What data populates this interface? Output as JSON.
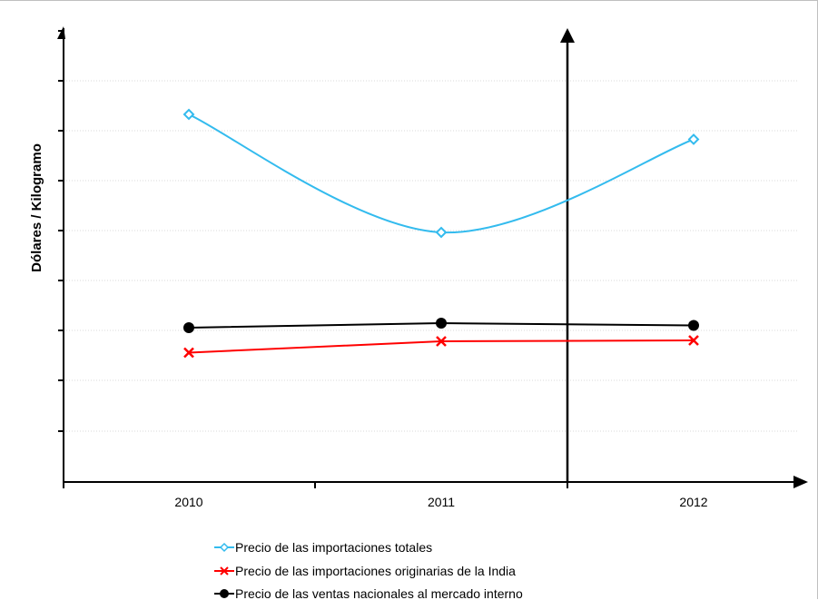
{
  "chart_data": {
    "type": "line",
    "title": "",
    "xlabel": "",
    "ylabel": "Dólares / Kilogramo",
    "categories": [
      "2010",
      "2011",
      "2012"
    ],
    "ylim": [
      0,
      100
    ],
    "y_tick_labels_shown": false,
    "grid": "horizontal dotted",
    "legend_position": "bottom",
    "series": [
      {
        "name": "Precio de las importaciones totales",
        "values": [
          81,
          55,
          75.5
        ],
        "color": "#33bbee",
        "marker": "diamond-open",
        "smooth": true
      },
      {
        "name": "Precio de las importaciones originarias de la India",
        "values": [
          28.5,
          31,
          31.2
        ],
        "color": "#ff0000",
        "marker": "x",
        "smooth": false
      },
      {
        "name": "Precio de las ventas nacionales al mercado interno",
        "values": [
          34,
          35,
          34.5
        ],
        "color": "#000000",
        "marker": "circle-filled",
        "smooth": false
      }
    ],
    "vertical_marker_line": "between 2011 and 2012"
  }
}
